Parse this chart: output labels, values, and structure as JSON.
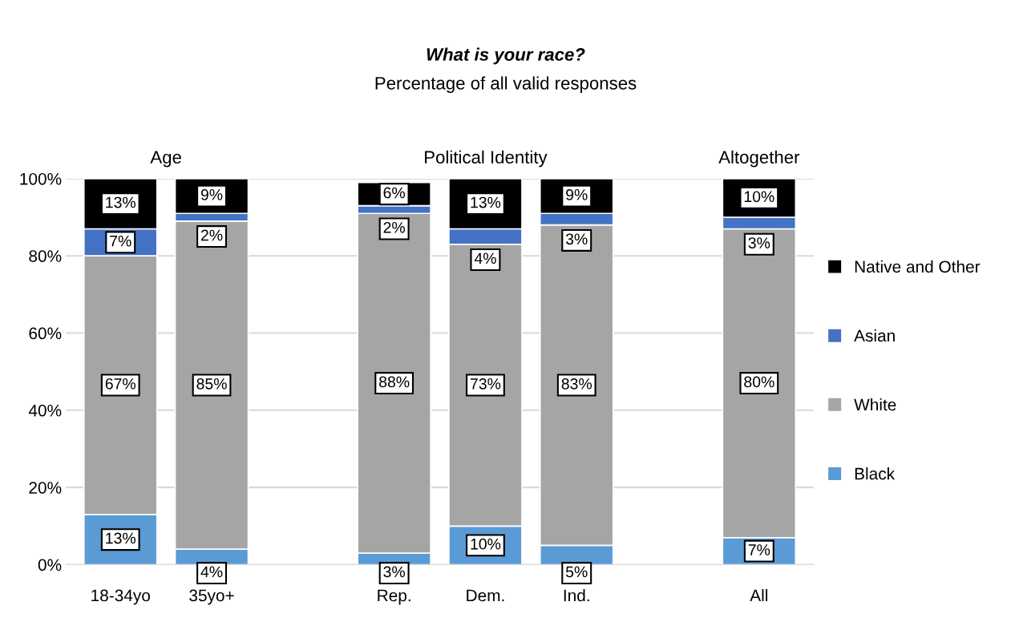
{
  "chart_data": {
    "type": "bar",
    "stacked": true,
    "title": "What is your race?",
    "subtitle": "Percentage of all valid responses",
    "categories": [
      "18-34yo",
      "35yo+",
      null,
      "Rep.",
      "Dem.",
      "Ind.",
      null,
      "All"
    ],
    "series": [
      {
        "name": "Black",
        "color": "#5b9bd5",
        "values": [
          13,
          4,
          null,
          3,
          10,
          5,
          null,
          7
        ],
        "value_labels": [
          "13%",
          "4%",
          null,
          "3%",
          "10%",
          "5%",
          null,
          "7%"
        ]
      },
      {
        "name": "White",
        "color": "#a5a5a5",
        "values": [
          67,
          85,
          null,
          88,
          73,
          83,
          null,
          80
        ],
        "value_labels": [
          "67%",
          "85%",
          null,
          "88%",
          "73%",
          "83%",
          null,
          "80%"
        ]
      },
      {
        "name": "Asian",
        "color": "#4472c4",
        "values": [
          7,
          2,
          null,
          2,
          4,
          3,
          null,
          3
        ],
        "value_labels": [
          "7%",
          "2%",
          null,
          "2%",
          "4%",
          "3%",
          null,
          "3%"
        ]
      },
      {
        "name": "Native and Other",
        "color": "#000000",
        "values": [
          13,
          9,
          null,
          6,
          13,
          9,
          null,
          10
        ],
        "value_labels": [
          "13%",
          "9%",
          null,
          "6%",
          "13%",
          "9%",
          null,
          "10%"
        ]
      }
    ],
    "annotations": [
      "Age",
      "Political Identity",
      "Altogether"
    ],
    "ylim": [
      0,
      100
    ],
    "yticks": [
      {
        "value": 0,
        "label": "0%"
      },
      {
        "value": 20,
        "label": "20%"
      },
      {
        "value": 40,
        "label": "40%"
      },
      {
        "value": 60,
        "label": "60%"
      },
      {
        "value": 80,
        "label": "80%"
      },
      {
        "value": 100,
        "label": "100%"
      }
    ],
    "grid": "y",
    "legend": "right"
  }
}
